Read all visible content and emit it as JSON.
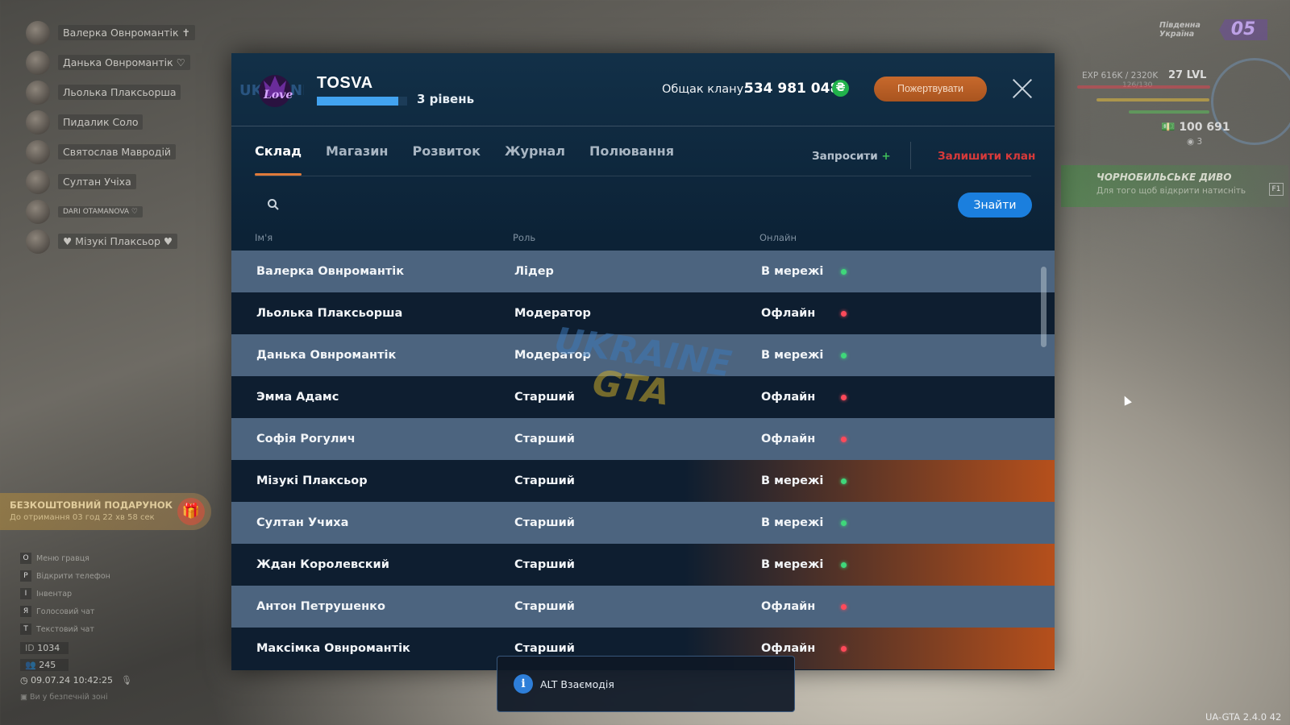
{
  "hud": {
    "players": [
      {
        "name": "Валерка Овнромантік ✝"
      },
      {
        "name": "Данька Овнромантік ♡"
      },
      {
        "name": "Льолька Плаксьорша"
      },
      {
        "name": "Пидалик Соло"
      },
      {
        "name": "Святослав Мавродій"
      },
      {
        "name": "Султан Учіха"
      },
      {
        "name": "DARI OTAMANOVA ♡"
      },
      {
        "name": "♥ Мізукі Плаксьор ♥"
      }
    ],
    "gift_title": "БЕЗКОШТОВНИЙ ПОДАРУНОК",
    "gift_timer": "До отримання 03 год 22 хв 58 сек",
    "hints": [
      {
        "key": "O",
        "label": "Меню гравця"
      },
      {
        "key": "P",
        "label": "Відкрити телефон"
      },
      {
        "key": "I",
        "label": "Інвентар"
      },
      {
        "key": "Я",
        "label": "Голосовий чат"
      },
      {
        "key": "T",
        "label": "Текстовий чат"
      }
    ],
    "id_value": "1034",
    "online_value": "245",
    "datetime": "09.07.24 10:42:25",
    "safe_zone": "Ви у безпечній зоні",
    "region": "Південна\nУкраїна",
    "level_badge": "05",
    "exp": "EXP 616K / 2320K",
    "exp_sub": "126/130",
    "level": "27 LVL",
    "money": "100 691",
    "money_sub": "3",
    "quest_title": "ЧОРНОБИЛЬСЬКЕ ДИВО",
    "quest_sub": "Для того щоб відкрити натисніть",
    "quest_key": "F1",
    "version": "UA-GTA 2.4.0   42"
  },
  "clan": {
    "name": "TOSVA",
    "tier": "3 рівень",
    "xp_fraction": 0.9,
    "bank_label": "Общак клану:",
    "bank_value": "534 981 048",
    "currency_symbol": "₴",
    "donate_label": "Пожертвувати",
    "tabs": [
      "Склад",
      "Магазин",
      "Розвиток",
      "Журнал",
      "Полювання"
    ],
    "active_tab": "Склад",
    "invite_label": "Запросити",
    "invite_plus": "+",
    "leave_label": "Залишити клан",
    "search_placeholder": "",
    "find_label": "Знайти",
    "columns": {
      "name": "Ім'я",
      "role": "Роль",
      "online": "Онлайн"
    },
    "members": [
      {
        "name": "Валерка Овнромантік",
        "role": "Лідер",
        "status": "В мережі",
        "online": true
      },
      {
        "name": "Льолька Плаксьорша",
        "role": "Модератор",
        "status": "Офлайн",
        "online": false
      },
      {
        "name": "Данька Овнромантік",
        "role": "Модератор",
        "status": "В мережі",
        "online": true
      },
      {
        "name": "Эмма Адамс",
        "role": "Старший",
        "status": "Офлайн",
        "online": false
      },
      {
        "name": "Софія Рогулич",
        "role": "Старший",
        "status": "Офлайн",
        "online": false
      },
      {
        "name": "Мізукі Плаксьор",
        "role": "Старший",
        "status": "В мережі",
        "online": true
      },
      {
        "name": "Султан Учиха",
        "role": "Старший",
        "status": "В мережі",
        "online": true
      },
      {
        "name": "Ждан Королевский",
        "role": "Старший",
        "status": "В мережі",
        "online": true
      },
      {
        "name": "Антон Петрушенко",
        "role": "Старший",
        "status": "Офлайн",
        "online": false
      },
      {
        "name": "Максімка Овнромантік",
        "role": "Старший",
        "status": "Офлайн",
        "online": false
      }
    ],
    "colors": {
      "accent": "#e07a3a",
      "online": "#3fd77a",
      "offline": "#ff4a5a",
      "find": "#1b7fde"
    }
  },
  "toast": {
    "icon": "info-icon",
    "text": "ALT Взаємодія"
  }
}
